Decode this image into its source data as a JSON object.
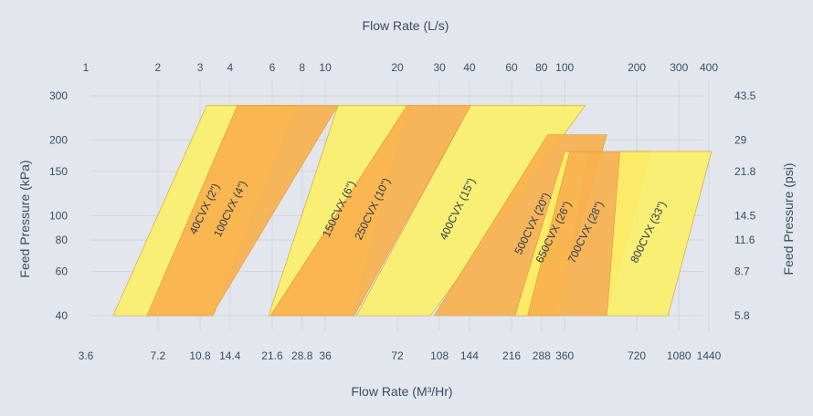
{
  "chart_data": {
    "type": "area",
    "x_top": {
      "label": "Flow Rate (L/s)",
      "scale": "log",
      "ticks": [
        1,
        2,
        3,
        4,
        6,
        8,
        10,
        20,
        30,
        40,
        60,
        80,
        100,
        200,
        300,
        400
      ],
      "tick_labels": [
        "1",
        "2",
        "3",
        "4",
        "6",
        "8",
        "10",
        "20",
        "30",
        "40",
        "60",
        "80",
        "100",
        "200",
        "300",
        "400"
      ]
    },
    "x_bottom": {
      "label": "Flow Rate (M³/Hr)",
      "scale": "log",
      "ticks": [
        3.6,
        7.2,
        10.8,
        14.4,
        21.6,
        28.8,
        36,
        72,
        108,
        144,
        216,
        288,
        360,
        720,
        1080,
        1440
      ],
      "tick_labels": [
        "3.6",
        "7.2",
        "10.8",
        "14.4",
        "21.6",
        "28.8",
        "36",
        "72",
        "108",
        "144",
        "216",
        "288",
        "360",
        "720",
        "1080",
        "1440"
      ]
    },
    "y_left": {
      "label": "Feed Pressure (kPa)",
      "scale": "log",
      "ticks": [
        40,
        60,
        80,
        100,
        150,
        200,
        300
      ],
      "tick_labels": [
        "40",
        "60",
        "80",
        "100",
        "150",
        "200",
        "300"
      ]
    },
    "y_right": {
      "label": "Feed Pressure (psi)",
      "scale": "log",
      "ticks": [
        5.8,
        8.7,
        11.6,
        14.5,
        21.8,
        29,
        43.5
      ],
      "tick_labels": [
        "5.8",
        "8.7",
        "11.6",
        "14.5",
        "21.8",
        "29",
        "43.5"
      ]
    },
    "grid": true,
    "series": [
      {
        "name": "40CVX (2\")",
        "color": "#fbf06a",
        "top_kpa": 275,
        "bottom_left": 1.3,
        "bottom_right": 3.4,
        "top_left": 3.2,
        "top_right": 7.7
      },
      {
        "name": "100CVX (4\")",
        "color": "#f8b14e",
        "top_kpa": 275,
        "bottom_left": 1.8,
        "bottom_right": 3.35,
        "top_left": 4.3,
        "top_right": 11.3
      },
      {
        "name": "150CVX (6\")",
        "color": "#fbf06a",
        "top_kpa": 275,
        "bottom_left": 5.8,
        "bottom_right": 13.0,
        "top_left": 11.3,
        "top_right": 22.5
      },
      {
        "name": "250CVX (10\")",
        "color": "#f8b14e",
        "top_kpa": 275,
        "bottom_left": 5.9,
        "bottom_right": 13.2,
        "top_left": 22.0,
        "top_right": 40.5
      },
      {
        "name": "400CVX (15\")",
        "color": "#fbf06a",
        "top_kpa": 275,
        "bottom_left": 13.5,
        "bottom_right": 27.5,
        "top_left": 40.5,
        "top_right": 122
      },
      {
        "name": "500CVX (20\")",
        "color": "#f8b14e",
        "top_kpa": 210,
        "bottom_left": 28.5,
        "bottom_right": 90,
        "top_left": 85,
        "top_right": 150
      },
      {
        "name": "650CVX (26\")",
        "color": "#fbf06a",
        "top_kpa": 180,
        "bottom_left": 62,
        "bottom_right": 95,
        "top_left": 100,
        "top_right": 125
      },
      {
        "name": "700CVX (28\")",
        "color": "#f8b14e",
        "top_kpa": 180,
        "bottom_left": 70,
        "bottom_right": 150,
        "top_left": 105,
        "top_right": 230
      },
      {
        "name": "800CVX (33\")",
        "color": "#fbf06a",
        "top_kpa": 180,
        "bottom_left": 150,
        "bottom_right": 270,
        "top_left": 170,
        "top_right": 410
      }
    ]
  }
}
